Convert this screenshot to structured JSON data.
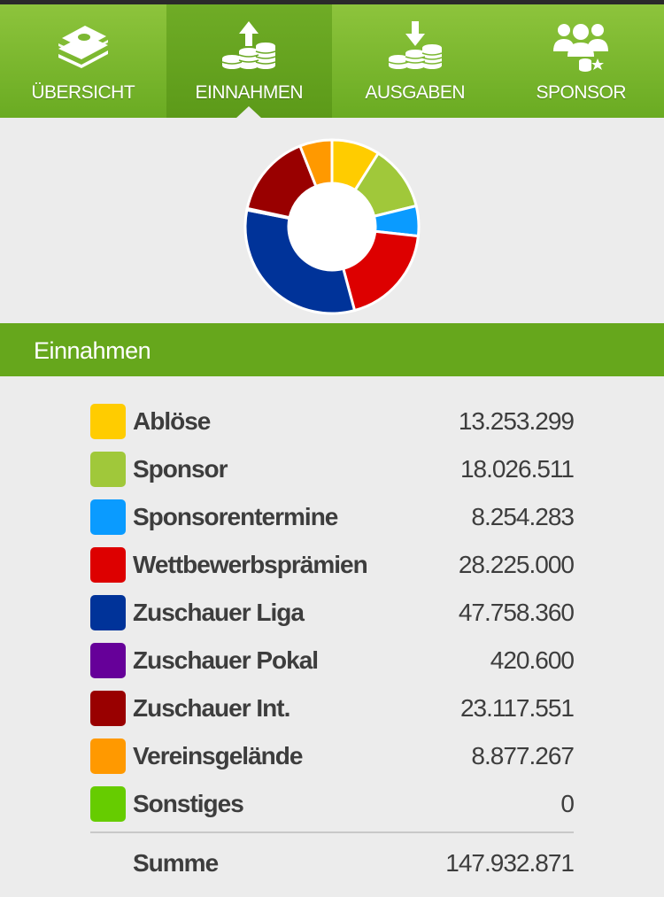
{
  "tabs": [
    {
      "label": "ÜBERSICHT",
      "icon": "money-stack-icon",
      "active": false
    },
    {
      "label": "EINNAHMEN",
      "icon": "coins-arrow-up-icon",
      "active": true
    },
    {
      "label": "AUSGABEN",
      "icon": "coins-arrow-down-icon",
      "active": false
    },
    {
      "label": "SPONSOR",
      "icon": "sponsor-people-icon",
      "active": false
    }
  ],
  "section": {
    "title": "Einnahmen"
  },
  "legend": [
    {
      "name": "Ablöse",
      "value": "13.253.299",
      "color": "#ffcc00"
    },
    {
      "name": "Sponsor",
      "value": "18.026.511",
      "color": "#a0c83a"
    },
    {
      "name": "Sponsorentermine",
      "value": "8.254.283",
      "color": "#0a9bff"
    },
    {
      "name": "Wettbewerbsprämien",
      "value": "28.225.000",
      "color": "#dd0000"
    },
    {
      "name": "Zuschauer Liga",
      "value": "47.758.360",
      "color": "#003399"
    },
    {
      "name": "Zuschauer Pokal",
      "value": "420.600",
      "color": "#660099"
    },
    {
      "name": "Zuschauer Int.",
      "value": "23.117.551",
      "color": "#990000"
    },
    {
      "name": "Vereinsgelände",
      "value": "8.877.267",
      "color": "#ff9900"
    },
    {
      "name": "Sonstiges",
      "value": "0",
      "color": "#66cc00"
    }
  ],
  "summary": {
    "label": "Summe",
    "value": "147.932.871"
  },
  "chart_data": {
    "type": "pie",
    "style": "donut",
    "categories": [
      "Ablöse",
      "Sponsor",
      "Sponsorentermine",
      "Wettbewerbsprämien",
      "Zuschauer Liga",
      "Zuschauer Pokal",
      "Zuschauer Int.",
      "Vereinsgelände",
      "Sonstiges"
    ],
    "values": [
      13253299,
      18026511,
      8254283,
      28225000,
      47758360,
      420600,
      23117551,
      8877267,
      0
    ],
    "colors": [
      "#ffcc00",
      "#a0c83a",
      "#0a9bff",
      "#dd0000",
      "#003399",
      "#660099",
      "#990000",
      "#ff9900",
      "#66cc00"
    ],
    "start_angle_deg": 0,
    "direction": "clockwise"
  }
}
